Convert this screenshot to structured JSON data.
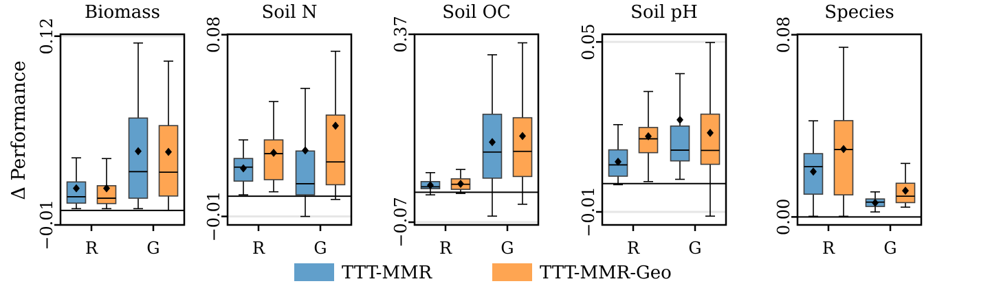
{
  "chart_data": [
    {
      "type": "box",
      "title": "Biomass",
      "ylim": [
        -0.01,
        0.1213
      ],
      "yticks": [
        {
          "value": 0.12,
          "label": "0.12"
        },
        {
          "value": -0.01,
          "label": "−0.01"
        }
      ],
      "categories": [
        "R",
        "G"
      ],
      "boxes": [
        [
          {
            "whislo": 0.0012,
            "q1": 0.005,
            "med": 0.0094,
            "q3": 0.0196,
            "whishi": 0.0362,
            "mean": 0.0152
          },
          {
            "whislo": 0.0012,
            "q1": 0.0047,
            "med": 0.0084,
            "q3": 0.017,
            "whishi": 0.0357,
            "mean": 0.0152
          }
        ],
        [
          {
            "whislo": 0.0012,
            "q1": 0.0084,
            "med": 0.0267,
            "q3": 0.0636,
            "whishi": 0.1153,
            "mean": 0.0408
          },
          {
            "whislo": 0.0,
            "q1": 0.0099,
            "med": 0.0263,
            "q3": 0.0584,
            "whishi": 0.1028,
            "mean": 0.0403
          }
        ]
      ]
    },
    {
      "type": "box",
      "title": "Soil N",
      "ylim": [
        -0.0142,
        0.0802
      ],
      "yticks": [
        {
          "value": 0.08,
          "label": "0.08"
        },
        {
          "value": -0.01,
          "label": "−0.01"
        }
      ],
      "categories": [
        "R",
        "G"
      ],
      "boxes": [
        [
          {
            "whislo": 0.0007,
            "q1": 0.0075,
            "med": 0.0144,
            "q3": 0.0187,
            "whishi": 0.0279,
            "mean": 0.0138
          },
          {
            "whislo": 0.0022,
            "q1": 0.0082,
            "med": 0.0211,
            "q3": 0.0279,
            "whishi": 0.0469,
            "mean": 0.0215
          }
        ],
        [
          {
            "whislo": -0.01,
            "q1": 0.0007,
            "med": 0.0062,
            "q3": 0.0224,
            "whishi": 0.0534,
            "mean": 0.0227
          },
          {
            "whislo": -0.0016,
            "q1": 0.0057,
            "med": 0.017,
            "q3": 0.0402,
            "whishi": 0.0718,
            "mean": 0.0349
          }
        ]
      ]
    },
    {
      "type": "box",
      "title": "Soil OC",
      "ylim": [
        -0.0764,
        0.37
      ],
      "yticks": [
        {
          "value": 0.37,
          "label": "0.37"
        },
        {
          "value": -0.07,
          "label": "−0.07"
        }
      ],
      "categories": [
        "R",
        "G"
      ],
      "boxes": [
        [
          {
            "whislo": -0.006,
            "q1": 0.0085,
            "med": 0.0129,
            "q3": 0.0251,
            "whishi": 0.046,
            "mean": 0.0166
          },
          {
            "whislo": -0.0027,
            "q1": 0.0069,
            "med": 0.0187,
            "q3": 0.0315,
            "whishi": 0.0535,
            "mean": 0.0198
          }
        ],
        [
          {
            "whislo": -0.0558,
            "q1": 0.0331,
            "med": 0.0942,
            "q3": 0.1827,
            "whishi": 0.322,
            "mean": 0.1174
          },
          {
            "whislo": -0.028,
            "q1": 0.037,
            "med": 0.0958,
            "q3": 0.1746,
            "whishi": 0.35,
            "mean": 0.1318
          }
        ]
      ]
    },
    {
      "type": "box",
      "title": "Soil pH",
      "ylim": [
        -0.0146,
        0.0527
      ],
      "yticks": [
        {
          "value": 0.05,
          "label": "0.05"
        },
        {
          "value": -0.01,
          "label": "−0.01"
        }
      ],
      "categories": [
        "R",
        "G"
      ],
      "boxes": [
        [
          {
            "whislo": -0.0004,
            "q1": 0.0026,
            "med": 0.0066,
            "q3": 0.0119,
            "whishi": 0.0208,
            "mean": 0.0077
          },
          {
            "whislo": 0.0007,
            "q1": 0.0109,
            "med": 0.0158,
            "q3": 0.0198,
            "whishi": 0.0325,
            "mean": 0.0167
          }
        ],
        [
          {
            "whislo": 0.0015,
            "q1": 0.008,
            "med": 0.0118,
            "q3": 0.0203,
            "whishi": 0.0388,
            "mean": 0.0225
          },
          {
            "whislo": -0.0115,
            "q1": 0.0068,
            "med": 0.0117,
            "q3": 0.0245,
            "whishi": 0.0498,
            "mean": 0.0179
          }
        ]
      ]
    },
    {
      "type": "box",
      "title": "Species",
      "ylim": [
        -0.0035,
        0.0802
      ],
      "yticks": [
        {
          "value": 0.08,
          "label": "0.08"
        },
        {
          "value": 0.0,
          "label": "0.00"
        }
      ],
      "categories": [
        "R",
        "G"
      ],
      "boxes": [
        [
          {
            "whislo": 0.0003,
            "q1": 0.01,
            "med": 0.0221,
            "q3": 0.0278,
            "whishi": 0.0422,
            "mean": 0.0199
          },
          {
            "whislo": 0.0003,
            "q1": 0.0097,
            "med": 0.0296,
            "q3": 0.0423,
            "whishi": 0.0745,
            "mean": 0.0298
          }
        ],
        [
          {
            "whislo": 0.0022,
            "q1": 0.0046,
            "med": 0.0065,
            "q3": 0.0079,
            "whishi": 0.011,
            "mean": 0.0062
          },
          {
            "whislo": 0.0043,
            "q1": 0.0063,
            "med": 0.0091,
            "q3": 0.0148,
            "whishi": 0.0235,
            "mean": 0.0115
          }
        ]
      ]
    }
  ],
  "ylabel": "Δ Performance",
  "reference_line": 0,
  "legend": {
    "placement": "bottom",
    "items": [
      {
        "name": "TTT-MMR",
        "color": "#619fcb"
      },
      {
        "name": "TTT-MMR-Geo",
        "color": "#fea552"
      }
    ]
  },
  "colors": {
    "edge": "#3d3d3d",
    "grid": "#e6e6e6"
  }
}
